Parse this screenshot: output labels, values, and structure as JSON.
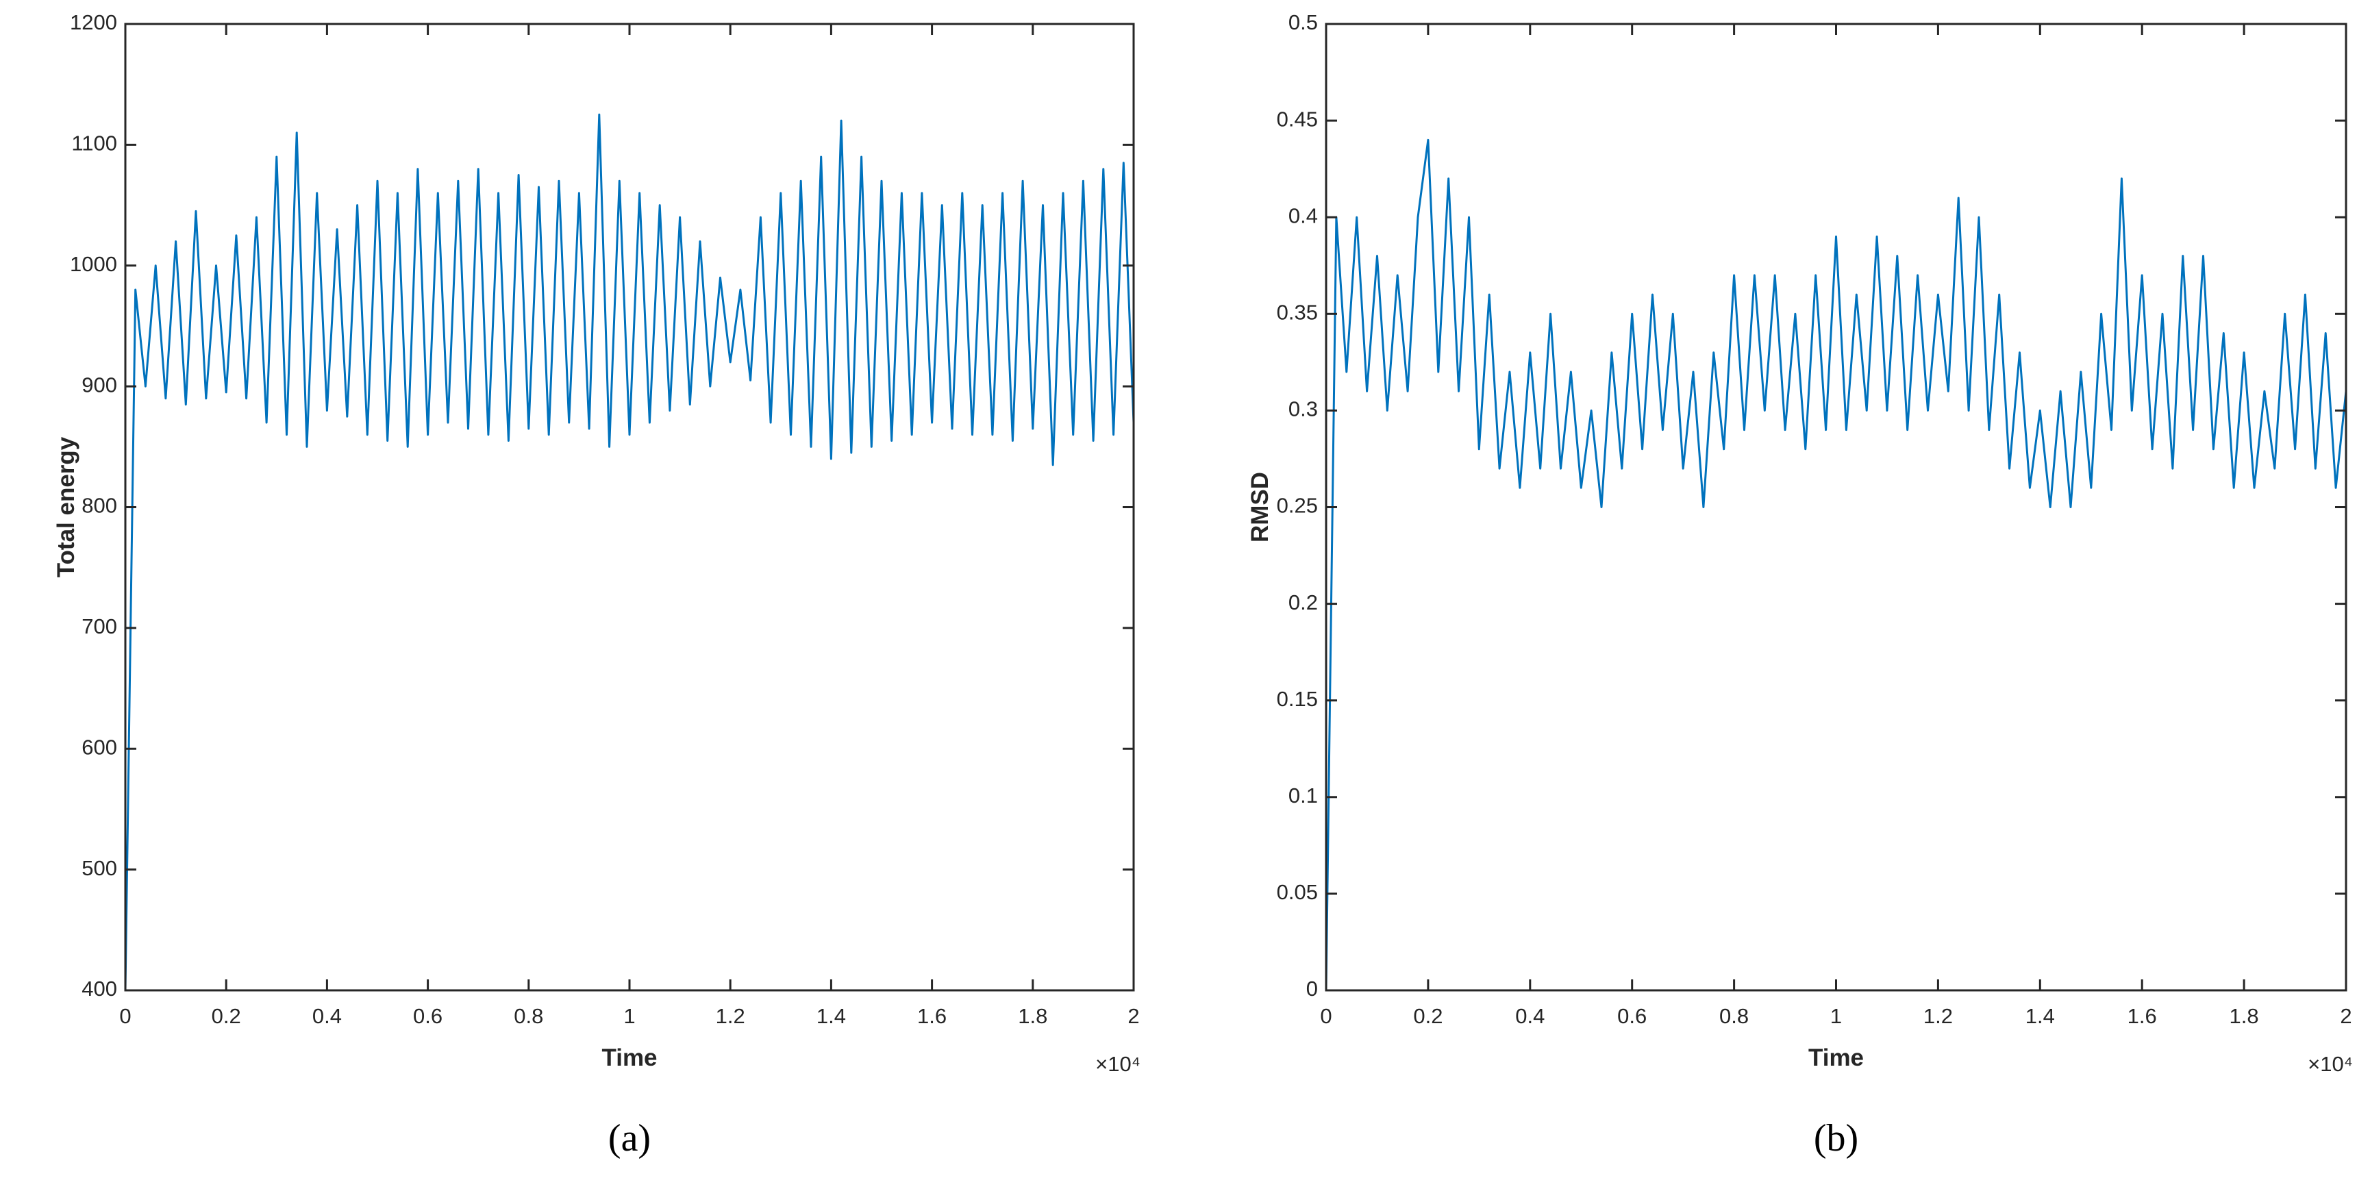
{
  "chart_data": [
    {
      "type": "line",
      "caption": "(a)",
      "xlabel": "Time",
      "ylabel": "Total energy",
      "x_multiplier": "×10⁴",
      "xlim": [
        0,
        2
      ],
      "xticks": [
        0,
        0.2,
        0.4,
        0.6,
        0.8,
        1,
        1.2,
        1.4,
        1.6,
        1.8,
        2
      ],
      "ylim": [
        400,
        1200
      ],
      "yticks": [
        400,
        500,
        600,
        700,
        800,
        900,
        1000,
        1100,
        1200
      ],
      "x": [
        0,
        0.02,
        0.04,
        0.06,
        0.08,
        0.1,
        0.12,
        0.14,
        0.16,
        0.18,
        0.2,
        0.22,
        0.24,
        0.26,
        0.28,
        0.3,
        0.32,
        0.34,
        0.36,
        0.38,
        0.4,
        0.42,
        0.44,
        0.46,
        0.48,
        0.5,
        0.52,
        0.54,
        0.56,
        0.58,
        0.6,
        0.62,
        0.64,
        0.66,
        0.68,
        0.7,
        0.72,
        0.74,
        0.76,
        0.78,
        0.8,
        0.82,
        0.84,
        0.86,
        0.88,
        0.9,
        0.92,
        0.94,
        0.96,
        0.98,
        1,
        1.02,
        1.04,
        1.06,
        1.08,
        1.1,
        1.12,
        1.14,
        1.16,
        1.18,
        1.2,
        1.22,
        1.24,
        1.26,
        1.28,
        1.3,
        1.32,
        1.34,
        1.36,
        1.38,
        1.4,
        1.42,
        1.44,
        1.46,
        1.48,
        1.5,
        1.52,
        1.54,
        1.56,
        1.58,
        1.6,
        1.62,
        1.64,
        1.66,
        1.68,
        1.7,
        1.72,
        1.74,
        1.76,
        1.78,
        1.8,
        1.82,
        1.84,
        1.86,
        1.88,
        1.9,
        1.92,
        1.94,
        1.96,
        1.98,
        2
      ],
      "series": [
        {
          "color": "#0072bd",
          "values": [
            400,
            980,
            900,
            1000,
            890,
            1020,
            885,
            1045,
            890,
            1000,
            895,
            1025,
            890,
            1040,
            870,
            1090,
            860,
            1110,
            850,
            1060,
            880,
            1030,
            875,
            1050,
            860,
            1070,
            855,
            1060,
            850,
            1080,
            860,
            1060,
            870,
            1070,
            865,
            1080,
            860,
            1060,
            855,
            1075,
            865,
            1065,
            860,
            1070,
            870,
            1060,
            865,
            1125,
            850,
            1070,
            860,
            1060,
            870,
            1050,
            880,
            1040,
            885,
            1020,
            900,
            990,
            920,
            980,
            905,
            1040,
            870,
            1060,
            860,
            1070,
            850,
            1090,
            840,
            1120,
            845,
            1090,
            850,
            1070,
            855,
            1060,
            860,
            1060,
            870,
            1050,
            865,
            1060,
            860,
            1050,
            860,
            1060,
            855,
            1070,
            865,
            1050,
            835,
            1060,
            860,
            1070,
            855,
            1080,
            860,
            1085,
            870
          ]
        }
      ]
    },
    {
      "type": "line",
      "caption": "(b)",
      "xlabel": "Time",
      "ylabel": "RMSD",
      "x_multiplier": "×10⁴",
      "xlim": [
        0,
        2
      ],
      "xticks": [
        0,
        0.2,
        0.4,
        0.6,
        0.8,
        1,
        1.2,
        1.4,
        1.6,
        1.8,
        2
      ],
      "ylim": [
        0,
        0.5
      ],
      "yticks": [
        0,
        0.05,
        0.1,
        0.15,
        0.2,
        0.25,
        0.3,
        0.35,
        0.4,
        0.45,
        0.5
      ],
      "x": [
        0,
        0.02,
        0.04,
        0.06,
        0.08,
        0.1,
        0.12,
        0.14,
        0.16,
        0.18,
        0.2,
        0.22,
        0.24,
        0.26,
        0.28,
        0.3,
        0.32,
        0.34,
        0.36,
        0.38,
        0.4,
        0.42,
        0.44,
        0.46,
        0.48,
        0.5,
        0.52,
        0.54,
        0.56,
        0.58,
        0.6,
        0.62,
        0.64,
        0.66,
        0.68,
        0.7,
        0.72,
        0.74,
        0.76,
        0.78,
        0.8,
        0.82,
        0.84,
        0.86,
        0.88,
        0.9,
        0.92,
        0.94,
        0.96,
        0.98,
        1,
        1.02,
        1.04,
        1.06,
        1.08,
        1.1,
        1.12,
        1.14,
        1.16,
        1.18,
        1.2,
        1.22,
        1.24,
        1.26,
        1.28,
        1.3,
        1.32,
        1.34,
        1.36,
        1.38,
        1.4,
        1.42,
        1.44,
        1.46,
        1.48,
        1.5,
        1.52,
        1.54,
        1.56,
        1.58,
        1.6,
        1.62,
        1.64,
        1.66,
        1.68,
        1.7,
        1.72,
        1.74,
        1.76,
        1.78,
        1.8,
        1.82,
        1.84,
        1.86,
        1.88,
        1.9,
        1.92,
        1.94,
        1.96,
        1.98,
        2
      ],
      "series": [
        {
          "color": "#0072bd",
          "values": [
            0,
            0.4,
            0.32,
            0.4,
            0.31,
            0.38,
            0.3,
            0.37,
            0.31,
            0.4,
            0.44,
            0.32,
            0.42,
            0.31,
            0.4,
            0.28,
            0.36,
            0.27,
            0.32,
            0.26,
            0.33,
            0.27,
            0.35,
            0.27,
            0.32,
            0.26,
            0.3,
            0.25,
            0.33,
            0.27,
            0.35,
            0.28,
            0.36,
            0.29,
            0.35,
            0.27,
            0.32,
            0.25,
            0.33,
            0.28,
            0.37,
            0.29,
            0.37,
            0.3,
            0.37,
            0.29,
            0.35,
            0.28,
            0.37,
            0.29,
            0.39,
            0.29,
            0.36,
            0.3,
            0.39,
            0.3,
            0.38,
            0.29,
            0.37,
            0.3,
            0.36,
            0.31,
            0.41,
            0.3,
            0.4,
            0.29,
            0.36,
            0.27,
            0.33,
            0.26,
            0.3,
            0.25,
            0.31,
            0.25,
            0.32,
            0.26,
            0.35,
            0.29,
            0.42,
            0.3,
            0.37,
            0.28,
            0.35,
            0.27,
            0.38,
            0.29,
            0.38,
            0.28,
            0.34,
            0.26,
            0.33,
            0.26,
            0.31,
            0.27,
            0.35,
            0.28,
            0.36,
            0.27,
            0.34,
            0.26,
            0.31
          ]
        }
      ]
    }
  ]
}
